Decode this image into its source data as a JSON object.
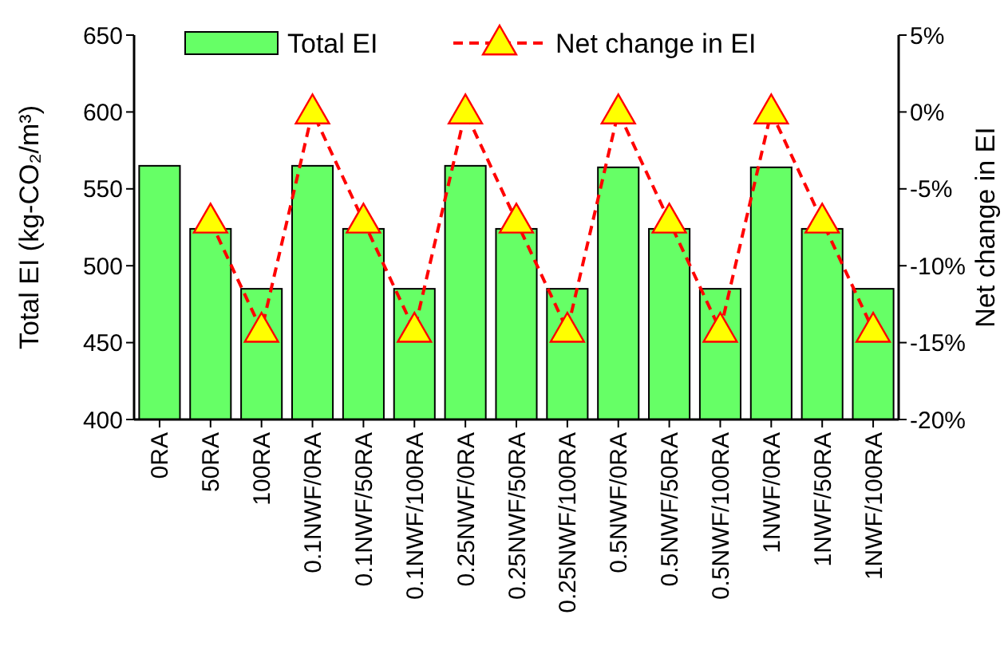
{
  "chart_data": {
    "type": "bar",
    "ylabel": "Total EI (kg-CO₂/m³)",
    "y2label": "Net change in EI",
    "categories": [
      "0RA",
      "50RA",
      "100RA",
      "0.1NWF/0RA",
      "0.1NWF/50RA",
      "0.1NWF/100RA",
      "0.25NWF/0RA",
      "0.25NWF/50RA",
      "0.25NWF/100RA",
      "0.5NWF/0RA",
      "0.5NWF/50RA",
      "0.5NWF/100RA",
      "1NWF/0RA",
      "1NWF/50RA",
      "1NWF/100RA"
    ],
    "series": [
      {
        "name": "Total EI",
        "color": "#66ff66",
        "values": [
          565,
          524,
          485,
          565,
          524,
          485,
          565,
          524,
          485,
          564,
          524,
          485,
          564,
          524,
          485
        ]
      },
      {
        "name": "Net change in EI",
        "type": "line",
        "axis": "y2",
        "color": "#ff0000",
        "marker": "triangle",
        "line_style": "dashed",
        "values": [
          null,
          -7.1,
          -14.2,
          0,
          -7.1,
          -14.2,
          0,
          -7.1,
          -14.2,
          0,
          -7.1,
          -14.2,
          0,
          -7.1,
          -14.2
        ]
      }
    ],
    "ylim": [
      400,
      650
    ],
    "yticks": [
      400,
      450,
      500,
      550,
      600,
      650
    ],
    "y2lim": [
      -20,
      5
    ],
    "y2ticks": [
      {
        "value": -20,
        "label": "-20%"
      },
      {
        "value": -15,
        "label": "-15%"
      },
      {
        "value": -10,
        "label": "-10%"
      },
      {
        "value": -5,
        "label": "-5%"
      },
      {
        "value": 0,
        "label": "0%"
      },
      {
        "value": 5,
        "label": "5%"
      }
    ],
    "legend": "top",
    "grid": false
  }
}
